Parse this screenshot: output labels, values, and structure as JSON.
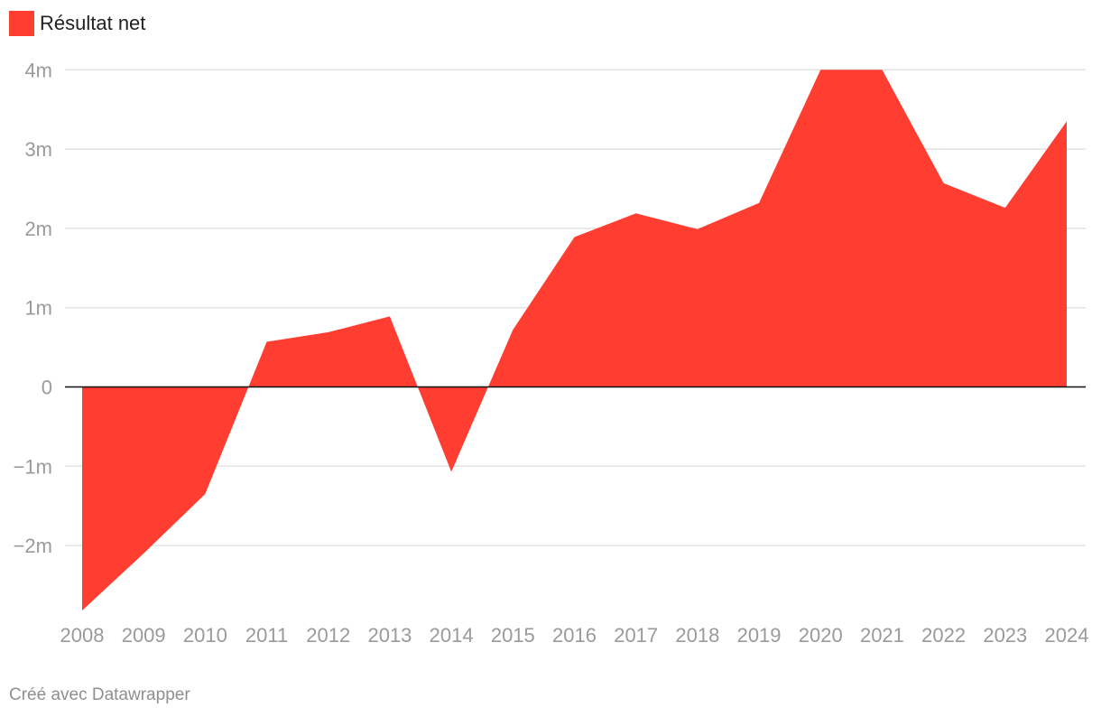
{
  "chart_data": {
    "type": "area",
    "title": "",
    "xlabel": "",
    "ylabel": "",
    "legend_position": "top-left",
    "grid": true,
    "x": [
      "2008",
      "2009",
      "2010",
      "2011",
      "2012",
      "2013",
      "2014",
      "2015",
      "2016",
      "2017",
      "2018",
      "2019",
      "2020",
      "2021",
      "2022",
      "2023",
      "2024"
    ],
    "series": [
      {
        "name": "Résultat net",
        "color": "#ff3d31",
        "values": [
          -2.82,
          -2.1,
          -1.35,
          0.57,
          0.69,
          0.89,
          -1.07,
          0.72,
          1.89,
          2.19,
          1.99,
          2.32,
          4.0,
          4.0,
          2.57,
          2.26,
          3.35
        ]
      }
    ],
    "ylim": [
      -2.82,
      4.0
    ],
    "yticks": [
      {
        "value": -2,
        "label": "−2m"
      },
      {
        "value": -1,
        "label": "−1m"
      },
      {
        "value": 0,
        "label": "0"
      },
      {
        "value": 1,
        "label": "1m"
      },
      {
        "value": 2,
        "label": "2m"
      },
      {
        "value": 3,
        "label": "3m"
      },
      {
        "value": 4,
        "label": "4m"
      }
    ]
  },
  "legend": {
    "label": "Résultat net",
    "color": "#ff3d31"
  },
  "footer": {
    "credit": "Créé avec Datawrapper"
  }
}
